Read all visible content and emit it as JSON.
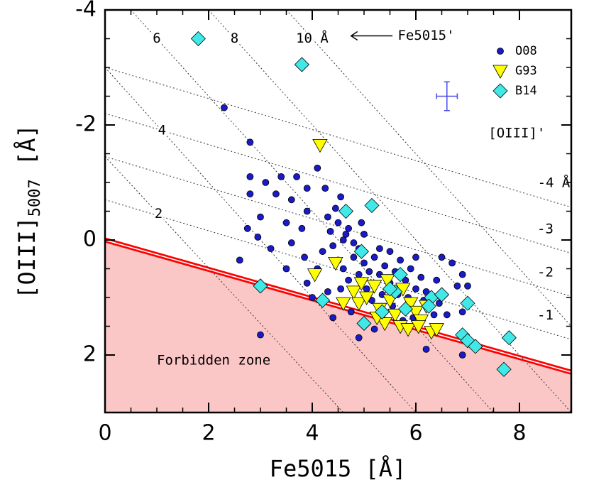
{
  "chart_data": {
    "type": "scatter",
    "xlabel": "Fe5015 [Å]",
    "ylabel": "[OIII]",
    "ylabel_subscript": "5007",
    "ylabel_suffix": " [Å]",
    "xlim": [
      0,
      9
    ],
    "ylim": [
      3,
      -4
    ],
    "xticks": [
      0,
      2,
      4,
      6,
      8
    ],
    "yticks": [
      2,
      0,
      -2,
      -4
    ],
    "boundary": {
      "x": [
        0,
        9
      ],
      "y": [
        0,
        2.3
      ],
      "color": "#ff0000"
    },
    "forbidden_label": "Forbidden zone",
    "fe_contours_title": "Fe5015'",
    "fe_contours": [
      {
        "label": "2",
        "x": [
          0,
          4.6
        ],
        "y": [
          -1.45,
          3
        ]
      },
      {
        "label": "4",
        "x": [
          0,
          6
        ],
        "y": [
          -3,
          3
        ]
      },
      {
        "label": "6",
        "x": [
          0.5,
          7.5
        ],
        "y": [
          -4,
          3
        ]
      },
      {
        "label": "8",
        "x": [
          2,
          9
        ],
        "y": [
          -4,
          3
        ]
      },
      {
        "label": "10 Å",
        "x": [
          3.5,
          9
        ],
        "y": [
          -4,
          1.5
        ]
      }
    ],
    "oiii_contours_title": "[OIII]'",
    "oiii_contours": [
      {
        "label": "-4 Å",
        "x": [
          0,
          9
        ],
        "y": [
          -3.0,
          -0.57
        ]
      },
      {
        "label": "-3",
        "x": [
          0,
          9
        ],
        "y": [
          -2.2,
          0.23
        ]
      },
      {
        "label": "-2",
        "x": [
          0,
          9
        ],
        "y": [
          -1.45,
          0.98
        ]
      },
      {
        "label": "-1",
        "x": [
          0,
          9
        ],
        "y": [
          -0.7,
          1.73
        ]
      }
    ],
    "error_bar": {
      "x": 6.6,
      "y": -2.5,
      "xerr": 0.2,
      "yerr": 0.25,
      "color": "#4a4ae8"
    },
    "series": [
      {
        "name": "O08",
        "color": "#1a1ac8",
        "marker": "circle",
        "x": [
          2.3,
          2.8,
          2.8,
          2.8,
          3.1,
          3.3,
          3.4,
          3.0,
          2.6,
          3.0,
          3.6,
          3.7,
          3.9,
          4.1,
          3.9,
          3.5,
          3.8,
          3.2,
          3.6,
          4.2,
          4.3,
          4.5,
          4.4,
          4.6,
          4.7,
          4.5,
          4.6,
          4.8,
          4.9,
          5.0,
          4.7,
          4.9,
          5.1,
          5.2,
          5.3,
          5.4,
          5.5,
          5.6,
          5.8,
          5.9,
          6.0,
          6.1,
          6.2,
          6.4,
          6.5,
          6.7,
          6.8,
          6.9,
          6.9,
          7.0,
          6.9,
          6.2,
          4.9,
          5.2,
          4.4,
          4.3,
          4.0,
          3.9,
          4.1,
          4.35,
          4.45,
          4.25,
          4.55,
          4.65,
          4.8,
          5.0,
          5.3,
          5.5,
          5.7,
          6.0,
          5.85,
          5.55,
          5.15,
          4.75,
          4.55,
          5.65,
          6.15,
          6.6,
          6.45,
          3.85,
          3.5,
          4.95,
          5.05,
          5.35,
          5.95,
          6.35,
          5.75,
          2.95,
          2.75
        ],
        "y": [
          -2.3,
          -1.7,
          -1.1,
          -0.8,
          -1.0,
          -0.8,
          -1.1,
          -0.4,
          0.35,
          1.65,
          -0.7,
          -1.1,
          -0.9,
          -1.25,
          -0.5,
          -0.3,
          -0.2,
          0.15,
          0.05,
          0.2,
          -0.4,
          -0.3,
          0.1,
          0.0,
          -0.2,
          0.35,
          0.5,
          0.3,
          0.15,
          0.4,
          0.7,
          0.6,
          0.55,
          0.3,
          0.6,
          0.45,
          0.75,
          0.55,
          0.7,
          0.5,
          0.85,
          0.65,
          0.9,
          0.7,
          0.3,
          0.4,
          0.8,
          0.6,
          1.25,
          0.8,
          2.0,
          1.9,
          1.7,
          1.55,
          1.35,
          0.9,
          1.0,
          0.75,
          0.5,
          -0.15,
          -0.55,
          -0.9,
          -0.75,
          -0.1,
          0.05,
          -0.1,
          0.15,
          0.2,
          0.35,
          0.3,
          1.0,
          1.15,
          1.05,
          1.25,
          0.85,
          0.95,
          1.05,
          1.3,
          1.1,
          0.3,
          0.5,
          -0.3,
          0.85,
          0.95,
          1.35,
          1.3,
          1.4,
          -0.05,
          -0.2
        ]
      },
      {
        "name": "G93",
        "color": "#ffff00",
        "marker": "triangle-down",
        "x": [
          4.15,
          4.05,
          4.45,
          4.8,
          4.9,
          5.05,
          5.2,
          5.3,
          5.5,
          5.6,
          5.75,
          5.9,
          6.0,
          6.1,
          6.2,
          6.3,
          5.4,
          5.7,
          4.6,
          5.85,
          6.05,
          4.95,
          5.45,
          6.4,
          5.25
        ],
        "y": [
          -1.65,
          0.6,
          0.4,
          0.9,
          1.1,
          1.0,
          0.8,
          1.2,
          1.05,
          1.3,
          0.85,
          1.1,
          1.25,
          1.4,
          1.15,
          1.6,
          1.45,
          1.5,
          1.1,
          1.55,
          1.5,
          0.75,
          0.7,
          1.55,
          1.35
        ]
      },
      {
        "name": "B14",
        "color": "#40e8e8",
        "marker": "diamond",
        "x": [
          1.8,
          3.8,
          4.65,
          5.15,
          3.0,
          4.2,
          4.95,
          5.7,
          5.6,
          6.3,
          6.5,
          7.0,
          6.9,
          7.0,
          7.15,
          7.8,
          7.7,
          5.0,
          5.35,
          6.25,
          5.8,
          5.5
        ],
        "y": [
          -3.5,
          -3.05,
          -0.5,
          -0.6,
          0.8,
          1.05,
          0.2,
          0.6,
          0.9,
          1.0,
          0.95,
          1.1,
          1.65,
          1.75,
          1.85,
          1.7,
          2.25,
          1.45,
          1.25,
          1.15,
          1.2,
          0.85
        ]
      }
    ]
  }
}
